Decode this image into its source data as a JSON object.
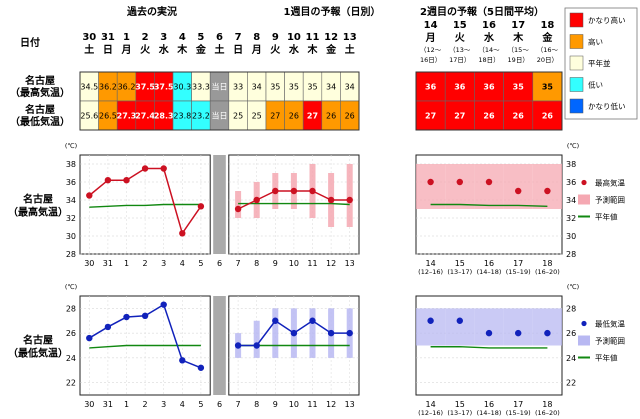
{
  "header": {
    "date_label": "日付",
    "past_title": "過去の実況",
    "week1_title": "1週目の予報（日別）",
    "week2_title": "2週目の予報（5日間平均）"
  },
  "days": [
    {
      "d": "30",
      "w": "土"
    },
    {
      "d": "31",
      "w": "日"
    },
    {
      "d": "1",
      "w": "月"
    },
    {
      "d": "2",
      "w": "火"
    },
    {
      "d": "3",
      "w": "水"
    },
    {
      "d": "4",
      "w": "木"
    },
    {
      "d": "5",
      "w": "金"
    },
    {
      "d": "6",
      "w": "土"
    },
    {
      "d": "7",
      "w": "日"
    },
    {
      "d": "8",
      "w": "月"
    },
    {
      "d": "9",
      "w": "火"
    },
    {
      "d": "10",
      "w": "水"
    },
    {
      "d": "11",
      "w": "木"
    },
    {
      "d": "12",
      "w": "金"
    },
    {
      "d": "13",
      "w": "土"
    }
  ],
  "week2_days": [
    {
      "d": "14",
      "w": "月",
      "r": "（12～",
      "r2": "16日）"
    },
    {
      "d": "15",
      "w": "火",
      "r": "（13～",
      "r2": "17日）"
    },
    {
      "d": "16",
      "w": "水",
      "r": "（14～",
      "r2": "18日）"
    },
    {
      "d": "17",
      "w": "木",
      "r": "（15～",
      "r2": "19日）"
    },
    {
      "d": "18",
      "w": "金",
      "r": "（16～",
      "r2": "20日）"
    }
  ],
  "rows": [
    {
      "label1": "名古屋",
      "label2": "（最高気温）",
      "values": [
        "34.5",
        "36.2",
        "36.2",
        "37.5",
        "37.5",
        "30.3",
        "33.3",
        "当日",
        "33",
        "34",
        "35",
        "35",
        "35",
        "34",
        "34"
      ],
      "classes": [
        "n",
        "h",
        "h",
        "vh",
        "vh",
        "l",
        "n",
        "x",
        "n",
        "n",
        "n",
        "n",
        "n",
        "n",
        "n"
      ],
      "week2": [
        "36",
        "36",
        "36",
        "35",
        "35"
      ],
      "week2_classes": [
        "vh",
        "vh",
        "vh",
        "vh",
        "h"
      ]
    },
    {
      "label1": "名古屋",
      "label2": "（最低気温）",
      "values": [
        "25.6",
        "26.5",
        "27.3",
        "27.4",
        "28.3",
        "23.8",
        "23.2",
        "当日",
        "25",
        "25",
        "27",
        "26",
        "27",
        "26",
        "26"
      ],
      "classes": [
        "n",
        "h",
        "vh",
        "vh",
        "vh",
        "l",
        "l",
        "x",
        "n",
        "n",
        "h",
        "h",
        "vh",
        "h",
        "h"
      ],
      "week2": [
        "27",
        "27",
        "26",
        "26",
        "26"
      ],
      "week2_classes": [
        "vh",
        "vh",
        "vh",
        "vh",
        "vh"
      ]
    }
  ],
  "legend": [
    {
      "label": "かなり高い",
      "color": "#ff0000"
    },
    {
      "label": "高い",
      "color": "#ff9900"
    },
    {
      "label": "平年並",
      "color": "#ffffdd"
    },
    {
      "label": "低い",
      "color": "#33ffff"
    },
    {
      "label": "かなり低い",
      "color": "#0066ff"
    }
  ],
  "charts": [
    {
      "side_label1": "名古屋",
      "side_label2": "（最高気温）",
      "unit": "(℃)",
      "legend": {
        "point": "最高気温",
        "range": "予測範囲",
        "normal": "平年値"
      },
      "chart_data": {
        "type": "line",
        "ylim": [
          28,
          39
        ],
        "yticks": [
          28,
          30,
          32,
          34,
          36,
          38
        ],
        "color": "#cc1122",
        "range_color": "#f5a8b2",
        "observed": [
          34.5,
          36.2,
          36.2,
          37.5,
          37.5,
          30.3,
          33.3
        ],
        "forecast": [
          33,
          34,
          35,
          35,
          35,
          34,
          34
        ],
        "forecast_range": [
          [
            32,
            35
          ],
          [
            32,
            36
          ],
          [
            33,
            37
          ],
          [
            33,
            37
          ],
          [
            32,
            38
          ],
          [
            31,
            37
          ],
          [
            31,
            38
          ]
        ],
        "normal_past": [
          33.2,
          33.3,
          33.4,
          33.4,
          33.5,
          33.5,
          33.5
        ],
        "normal_fc": [
          33.6,
          33.6,
          33.6,
          33.6,
          33.6,
          33.6,
          33.5
        ],
        "week2": [
          36,
          36,
          36,
          35,
          35
        ],
        "week2_range": [
          [
            33,
            38
          ],
          [
            33,
            38
          ],
          [
            33,
            38
          ],
          [
            33,
            38
          ],
          [
            33,
            38
          ]
        ],
        "normal_w2": [
          33.5,
          33.5,
          33.4,
          33.4,
          33.3
        ]
      }
    },
    {
      "side_label1": "名古屋",
      "side_label2": "（最低気温）",
      "unit": "(℃)",
      "legend": {
        "point": "最低気温",
        "range": "予測範囲",
        "normal": "平年値"
      },
      "chart_data": {
        "type": "line",
        "ylim": [
          21,
          29
        ],
        "yticks": [
          22,
          24,
          26,
          28
        ],
        "color": "#1122bb",
        "range_color": "#b8b8f2",
        "observed": [
          25.6,
          26.5,
          27.3,
          27.4,
          28.3,
          23.8,
          23.2
        ],
        "forecast": [
          25,
          25,
          27,
          26,
          27,
          26,
          26
        ],
        "forecast_range": [
          [
            24,
            26
          ],
          [
            24,
            27
          ],
          [
            24,
            28
          ],
          [
            24,
            28
          ],
          [
            24,
            28
          ],
          [
            24,
            28
          ],
          [
            24,
            28
          ]
        ],
        "normal_past": [
          24.8,
          24.9,
          25.0,
          25.0,
          25.0,
          25.0,
          25.0
        ],
        "normal_fc": [
          25.0,
          25.0,
          25.0,
          25.0,
          25.0,
          25.0,
          25.0
        ],
        "week2": [
          27,
          27,
          26,
          26,
          26
        ],
        "week2_range": [
          [
            25,
            28
          ],
          [
            25,
            28
          ],
          [
            25,
            28
          ],
          [
            25,
            28
          ],
          [
            25,
            28
          ]
        ],
        "normal_w2": [
          24.9,
          24.9,
          24.8,
          24.8,
          24.8
        ]
      }
    }
  ]
}
